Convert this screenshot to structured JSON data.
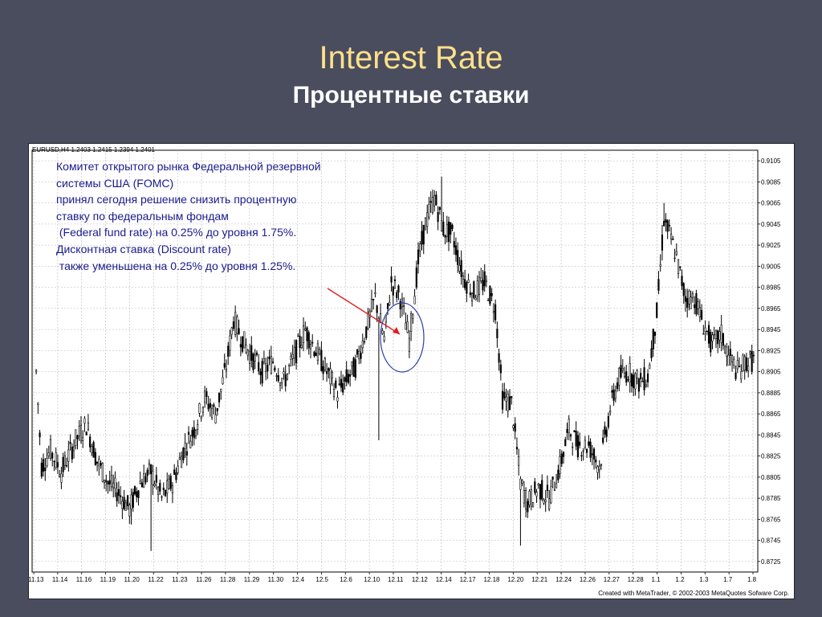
{
  "slide": {
    "title": "Interest Rate",
    "subtitle": "Процентные ставки"
  },
  "colors": {
    "background": "#4a4d5e",
    "title": "#ffe08a",
    "annotation_text": "#1a1a8c",
    "arrow": "#e02020",
    "circle": "#2a3fa8"
  },
  "chart_data": {
    "type": "candlestick",
    "header": "EURUSD,H4  1.2403 1.2415 1.2394 1.2401",
    "footer": "Created with MetaTrader, © 2002-2003 MetaQuotes Sofware Corp.",
    "ylim": [
      0.8715,
      0.9115
    ],
    "yticks": [
      "0.9105",
      "0.9085",
      "0.9065",
      "0.9045",
      "0.9025",
      "0.9005",
      "0.8985",
      "0.8965",
      "0.8945",
      "0.8925",
      "0.8905",
      "0.8885",
      "0.8865",
      "0.8845",
      "0.8825",
      "0.8805",
      "0.8785",
      "0.8765",
      "0.8745",
      "0.8725"
    ],
    "xticks": [
      "11.13",
      "11.14",
      "11.16",
      "11.19",
      "11.20",
      "11.22",
      "11.23",
      "11.26",
      "11.28",
      "11.29",
      "11.30",
      "12.4",
      "12.5",
      "12.6",
      "12.10",
      "12.11",
      "12.12",
      "12.14",
      "12.17",
      "12.18",
      "12.20",
      "12.21",
      "12.24",
      "12.26",
      "12.27",
      "12.28",
      "1.1",
      "1.2",
      "1.3",
      "1.7",
      "1.8"
    ],
    "grid": true,
    "price_path": [
      [
        0,
        0.8905
      ],
      [
        3,
        0.8815
      ],
      [
        8,
        0.883
      ],
      [
        14,
        0.881
      ],
      [
        22,
        0.884
      ],
      [
        28,
        0.8855
      ],
      [
        34,
        0.882
      ],
      [
        40,
        0.88
      ],
      [
        46,
        0.879
      ],
      [
        52,
        0.8775
      ],
      [
        58,
        0.88
      ],
      [
        64,
        0.881
      ],
      [
        70,
        0.8785
      ],
      [
        76,
        0.88
      ],
      [
        82,
        0.883
      ],
      [
        88,
        0.885
      ],
      [
        94,
        0.888
      ],
      [
        100,
        0.8865
      ],
      [
        106,
        0.891
      ],
      [
        110,
        0.8955
      ],
      [
        115,
        0.8935
      ],
      [
        120,
        0.892
      ],
      [
        126,
        0.8905
      ],
      [
        132,
        0.8915
      ],
      [
        138,
        0.8895
      ],
      [
        144,
        0.892
      ],
      [
        150,
        0.8945
      ],
      [
        156,
        0.8925
      ],
      [
        162,
        0.8905
      ],
      [
        168,
        0.8885
      ],
      [
        174,
        0.89
      ],
      [
        178,
        0.891
      ],
      [
        184,
        0.8945
      ],
      [
        189,
        0.8975
      ],
      [
        194,
        0.8935
      ],
      [
        198,
        0.899
      ],
      [
        203,
        0.8975
      ],
      [
        208,
        0.8935
      ],
      [
        213,
        0.901
      ],
      [
        217,
        0.9045
      ],
      [
        222,
        0.907
      ],
      [
        227,
        0.904
      ],
      [
        232,
        0.9035
      ],
      [
        238,
        0.8995
      ],
      [
        244,
        0.898
      ],
      [
        250,
        0.899
      ],
      [
        256,
        0.8965
      ],
      [
        260,
        0.888
      ],
      [
        265,
        0.8875
      ],
      [
        270,
        0.88
      ],
      [
        274,
        0.878
      ],
      [
        280,
        0.8795
      ],
      [
        286,
        0.8785
      ],
      [
        292,
        0.8815
      ],
      [
        297,
        0.885
      ],
      [
        302,
        0.8835
      ],
      [
        308,
        0.8835
      ],
      [
        314,
        0.8815
      ],
      [
        320,
        0.887
      ],
      [
        325,
        0.89
      ],
      [
        330,
        0.8905
      ],
      [
        336,
        0.8895
      ],
      [
        341,
        0.89
      ],
      [
        346,
        0.896
      ],
      [
        350,
        0.905
      ],
      [
        356,
        0.902
      ],
      [
        362,
        0.8975
      ],
      [
        367,
        0.8975
      ],
      [
        372,
        0.895
      ],
      [
        377,
        0.893
      ],
      [
        382,
        0.894
      ],
      [
        386,
        0.892
      ],
      [
        391,
        0.8905
      ],
      [
        396,
        0.8915
      ],
      [
        400,
        0.8915
      ]
    ],
    "special_points": [
      {
        "i": 53,
        "low": 0.876
      },
      {
        "i": 270,
        "low": 0.874
      },
      {
        "i": 64,
        "low": 0.8735
      },
      {
        "i": 226,
        "high": 0.909
      },
      {
        "i": 350,
        "high": 0.9065
      },
      {
        "i": 191,
        "low": 0.884
      }
    ],
    "annotations": {
      "lines": [
        "Комитет открытого рынка Федеральной резервной",
        "системы США (FOMC)",
        "принял сегодня решение снизить процентную",
        "ставку по федеральным фондам",
        " (Federal fund rate) на 0.25% до уровня 1.75%.",
        "Дисконтная ставка (Discount rate)",
        " также уменьшена на 0.25% до уровня 1.25%."
      ]
    }
  }
}
